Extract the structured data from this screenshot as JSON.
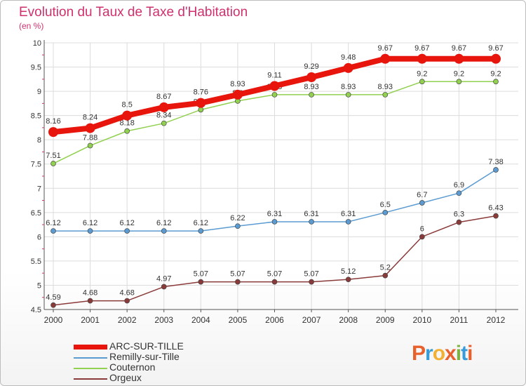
{
  "header": {
    "title": "Evolution du Taux de Taxe d'Habitation",
    "subtitle": "(en %)"
  },
  "logo": {
    "text": "Proxiti",
    "colors": [
      "#e8612c",
      "#3a9bd9",
      "#f2b134",
      "#e8612c",
      "#7cb342",
      "#3a9bd9",
      "#e8612c"
    ]
  },
  "chart_data": {
    "type": "line",
    "title": "Evolution du Taux de Taxe d'Habitation",
    "subtitle": "(en %)",
    "xlabel": "",
    "ylabel": "",
    "categories": [
      "2000",
      "2001",
      "2002",
      "2003",
      "2004",
      "2005",
      "2006",
      "2007",
      "2008",
      "2009",
      "2010",
      "2011",
      "2012"
    ],
    "ylim": [
      4.5,
      10
    ],
    "yticks": [
      "4.5",
      "5",
      "5.5",
      "6",
      "6.5",
      "7",
      "7.5",
      "8",
      "8.5",
      "9",
      "9.5",
      "10"
    ],
    "grid": true,
    "legend_position": "bottom-left",
    "series": [
      {
        "name": "ARC-SUR-TILLE",
        "color": "#e8150d",
        "values": [
          8.16,
          8.24,
          8.5,
          8.67,
          8.76,
          8.93,
          9.11,
          9.29,
          9.48,
          9.67,
          9.67,
          9.67,
          9.67
        ],
        "labels": [
          "8.16",
          "8.24",
          "8.5",
          "8.67",
          "8.76",
          "8.93",
          "9.11",
          "9.29",
          "9.48",
          "9.67",
          "9.67",
          "9.67",
          "9.67"
        ]
      },
      {
        "name": "Remilly-sur-Tille",
        "color": "#5b9bd1",
        "values": [
          6.12,
          6.12,
          6.12,
          6.12,
          6.12,
          6.22,
          6.31,
          6.31,
          6.31,
          6.5,
          6.7,
          6.9,
          7.38
        ],
        "labels": [
          "6.12",
          "6.12",
          "6.12",
          "6.12",
          "6.12",
          "6.22",
          "6.31",
          "6.31",
          "6.31",
          "6.5",
          "6.7",
          "6.9",
          "7.38"
        ]
      },
      {
        "name": "Couternon",
        "color": "#92d050",
        "values": [
          7.51,
          7.88,
          8.18,
          8.34,
          8.62,
          8.8,
          8.93,
          8.93,
          8.93,
          8.93,
          9.2,
          9.2,
          9.2
        ],
        "labels": [
          "7.51",
          "7.88",
          "8.18",
          "8.34",
          "8.62",
          "8.8",
          "8.93",
          "8.93",
          "8.93",
          "8.93",
          "9.2",
          "9.2",
          "9.2"
        ]
      },
      {
        "name": "Orgeux",
        "color": "#8b3a3a",
        "values": [
          4.59,
          4.68,
          4.68,
          4.97,
          5.07,
          5.07,
          5.07,
          5.07,
          5.12,
          5.2,
          6,
          6.3,
          6.43
        ],
        "labels": [
          "4.59",
          "4.68",
          "4.68",
          "4.97",
          "5.07",
          "5.07",
          "5.07",
          "5.07",
          "5.12",
          "5.2",
          "6",
          "6.3",
          "6.43"
        ]
      }
    ]
  }
}
